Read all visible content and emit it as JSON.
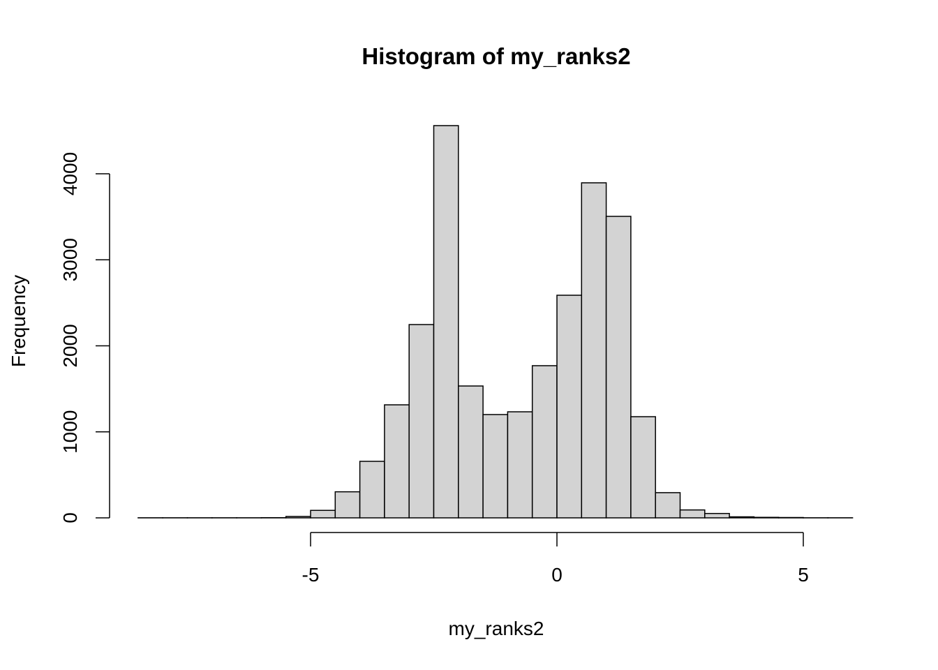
{
  "chart_data": {
    "type": "bar",
    "title": "Histogram of my_ranks2",
    "xlabel": "my_ranks2",
    "ylabel": "Frequency",
    "bin_edges": [
      -8.5,
      -8,
      -7.5,
      -7,
      -6.5,
      -6,
      -5.5,
      -5,
      -4.5,
      -4,
      -3.5,
      -3,
      -2.5,
      -2,
      -1.5,
      -1,
      -0.5,
      0,
      0.5,
      1,
      1.5,
      2,
      2.5,
      3,
      3.5,
      4,
      4.5,
      5,
      5.5,
      6
    ],
    "values": [
      1,
      1,
      1,
      1,
      1,
      2,
      16,
      87,
      303,
      657,
      1314,
      2247,
      4560,
      1533,
      1201,
      1233,
      1769,
      2588,
      3895,
      3505,
      1176,
      293,
      92,
      51,
      12,
      6,
      4,
      1,
      1
    ],
    "xlim": [
      -8.5,
      6
    ],
    "ylim": [
      0,
      4600
    ],
    "x_ticks": [
      -5,
      0,
      5
    ],
    "x_tick_labels": [
      "-5",
      "0",
      "5"
    ],
    "y_ticks": [
      0,
      1000,
      2000,
      3000,
      4000
    ],
    "y_tick_labels": [
      "0",
      "1000",
      "2000",
      "3000",
      "4000"
    ],
    "bar_color": "#d3d3d3",
    "grid": false
  }
}
